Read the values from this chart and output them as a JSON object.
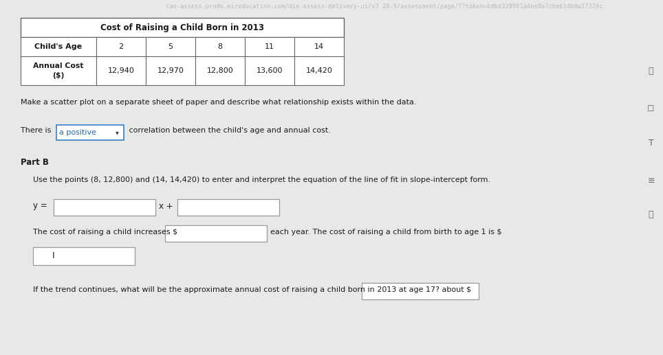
{
  "title": "Cost of Raising a Child Born in 2013",
  "table_headers": [
    "Child's Age",
    "2",
    "5",
    "8",
    "11",
    "14"
  ],
  "table_row_label": "Annual Cost\n($)",
  "table_values": [
    "12,940",
    "12,970",
    "12,800",
    "13,600",
    "14,420"
  ],
  "scatter_text": "Make a scatter plot on a separate sheet of paper and describe what relationship exists within the data.",
  "there_is_before": "There is ",
  "dropdown_text": "a positive",
  "there_is_after": " correlation between the child's age and annual cost.",
  "part_b_label": "Part B",
  "part_b_desc": "Use the points (8, 12,800) and (14, 14,420) to enter and interpret the equation of the line of fit in slope-intercept form.",
  "y_eq_label": "y = ",
  "x_plus_label": "x +",
  "cost_before": "The cost of raising a child increases $",
  "cost_after": "each year. The cost of raising a child from birth to age 1 is $",
  "trend_text": "If the trend continues, what will be the approximate annual cost of raising a child born in 2013 at age 17? about $",
  "bg_color": "#e8e8e8",
  "white": "#ffffff",
  "text_color": "#1a1a1a",
  "dropdown_border": "#4488cc",
  "dropdown_text_color": "#2266aa",
  "table_border": "#666666",
  "input_border": "#999999",
  "url_bar_bg": "#2a2a2a",
  "url_text": "can-assess.produ.mireducation.com/die-assess-delivery-ui/v3 28.9/assessment/page/7?token=bdbd339901a4ee9a7cbeb14bda37329c",
  "url_text_color": "#bbbbbb",
  "sidebar_bg": "#d8d8d8",
  "icon_color": "#666666"
}
